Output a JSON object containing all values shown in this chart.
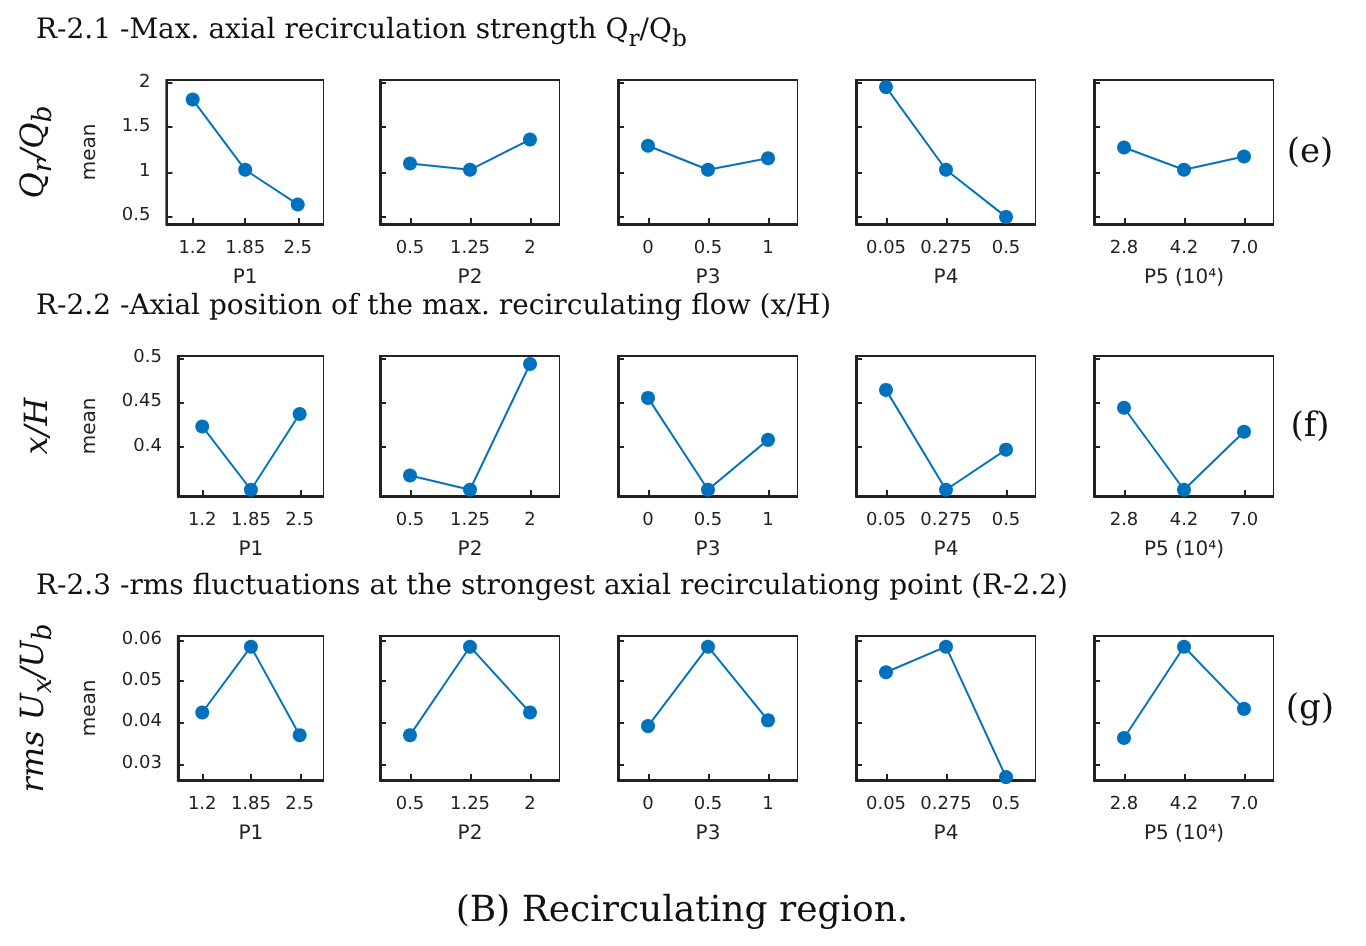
{
  "chart_data": [
    {
      "type": "line",
      "title": "R-2.1 -Max. axial recirculation strength    Q$_{r}$/Q$_{b}$",
      "ylabel": "mean",
      "annotations": [
        "Q$_{r}$/Q$_{b}$"
      ],
      "xlabel": "P1",
      "categories": [
        "1.2",
        "1.85",
        "2.5"
      ],
      "values": [
        1.81,
        1.02,
        0.63
      ],
      "color": "#0072bd",
      "marker": "circle",
      "ylim": [
        0.41,
        2.03
      ],
      "yticks": [
        0.5,
        1,
        1.5,
        2
      ]
    },
    {
      "type": "line",
      "xlabel": "P2",
      "categories": [
        "0.5",
        "1.25",
        "2"
      ],
      "values": [
        1.09,
        1.02,
        1.36
      ],
      "color": "#0072bd",
      "marker": "circle",
      "ylim": [
        0.41,
        2.03
      ],
      "yticks": [
        0.5,
        1,
        1.5,
        2
      ],
      "tick_labels": "x"
    },
    {
      "type": "line",
      "xlabel": "P3",
      "categories": [
        "0",
        "0.5",
        "1"
      ],
      "values": [
        1.29,
        1.02,
        1.15
      ],
      "color": "#0072bd",
      "marker": "circle",
      "ylim": [
        0.41,
        2.03
      ],
      "yticks": [
        0.5,
        1,
        1.5,
        2
      ],
      "tick_labels": "x"
    },
    {
      "type": "line",
      "xlabel": "P4",
      "categories": [
        "0.05",
        "0.275",
        "0.5"
      ],
      "values": [
        1.95,
        1.02,
        0.49
      ],
      "color": "#0072bd",
      "marker": "circle",
      "ylim": [
        0.41,
        2.03
      ],
      "yticks": [
        0.5,
        1,
        1.5,
        2
      ],
      "tick_labels": "x"
    },
    {
      "type": "line",
      "xlabel": "P5 (10⁴)",
      "annotations": [
        "(e)"
      ],
      "categories": [
        "2.8",
        "4.2",
        "7.0"
      ],
      "values": [
        1.27,
        1.02,
        1.17
      ],
      "color": "#0072bd",
      "marker": "circle",
      "ylim": [
        0.41,
        2.03
      ],
      "yticks": [
        0.5,
        1,
        1.5,
        2
      ],
      "tick_labels": "x"
    },
    {
      "type": "line",
      "title": "R-2.2 -Axial position of the max. recirculating flow (x/H)",
      "ylabel": "mean",
      "annotations": [
        "x/H"
      ],
      "xlabel": "P1",
      "categories": [
        "1.2",
        "1.85",
        "2.5"
      ],
      "values": [
        0.423,
        0.352,
        0.437
      ],
      "color": "#0072bd",
      "marker": "circle",
      "ylim": [
        0.345,
        0.502
      ],
      "yticks": [
        0.4,
        0.45,
        0.5
      ]
    },
    {
      "type": "line",
      "xlabel": "P2",
      "categories": [
        "0.5",
        "1.25",
        "2"
      ],
      "values": [
        0.368,
        0.352,
        0.493
      ],
      "color": "#0072bd",
      "marker": "circle",
      "ylim": [
        0.345,
        0.502
      ],
      "yticks": [
        0.4,
        0.45,
        0.5
      ],
      "tick_labels": "x"
    },
    {
      "type": "line",
      "xlabel": "P3",
      "categories": [
        "0",
        "0.5",
        "1"
      ],
      "values": [
        0.455,
        0.352,
        0.408
      ],
      "color": "#0072bd",
      "marker": "circle",
      "ylim": [
        0.345,
        0.502
      ],
      "yticks": [
        0.4,
        0.45,
        0.5
      ],
      "tick_labels": "x"
    },
    {
      "type": "line",
      "xlabel": "P4",
      "categories": [
        "0.05",
        "0.275",
        "0.5"
      ],
      "values": [
        0.464,
        0.352,
        0.397
      ],
      "color": "#0072bd",
      "marker": "circle",
      "ylim": [
        0.345,
        0.502
      ],
      "yticks": [
        0.4,
        0.45,
        0.5
      ],
      "tick_labels": "x"
    },
    {
      "type": "line",
      "xlabel": "P5 (10⁴)",
      "annotations": [
        "(f)"
      ],
      "categories": [
        "2.8",
        "4.2",
        "7.0"
      ],
      "values": [
        0.444,
        0.352,
        0.417
      ],
      "color": "#0072bd",
      "marker": "circle",
      "ylim": [
        0.345,
        0.502
      ],
      "yticks": [
        0.4,
        0.45,
        0.5
      ],
      "tick_labels": "x"
    },
    {
      "type": "line",
      "title": "R-2.3 -rms fluctuations at the strongest axial recirculationg point (R-2.2)",
      "ylabel": "mean",
      "annotations": [
        "rms U$_{x}$/U$_{b}$"
      ],
      "xlabel": "P1",
      "categories": [
        "1.2",
        "1.85",
        "2.5"
      ],
      "values": [
        0.0424,
        0.0584,
        0.0369
      ],
      "color": "#0072bd",
      "marker": "circle",
      "ylim": [
        0.026,
        0.061
      ],
      "yticks": [
        0.03,
        0.04,
        0.05,
        0.06
      ]
    },
    {
      "type": "line",
      "xlabel": "P2",
      "categories": [
        "0.5",
        "1.25",
        "2"
      ],
      "values": [
        0.0369,
        0.0584,
        0.0424
      ],
      "color": "#0072bd",
      "marker": "circle",
      "ylim": [
        0.026,
        0.061
      ],
      "yticks": [
        0.03,
        0.04,
        0.05,
        0.06
      ],
      "tick_labels": "x"
    },
    {
      "type": "line",
      "xlabel": "P3",
      "categories": [
        "0",
        "0.5",
        "1"
      ],
      "values": [
        0.0391,
        0.0584,
        0.0405
      ],
      "color": "#0072bd",
      "marker": "circle",
      "ylim": [
        0.026,
        0.061
      ],
      "yticks": [
        0.03,
        0.04,
        0.05,
        0.06
      ],
      "tick_labels": "x"
    },
    {
      "type": "line",
      "xlabel": "P4",
      "categories": [
        "0.05",
        "0.275",
        "0.5"
      ],
      "values": [
        0.0522,
        0.0584,
        0.0267
      ],
      "color": "#0072bd",
      "marker": "circle",
      "ylim": [
        0.026,
        0.061
      ],
      "yticks": [
        0.03,
        0.04,
        0.05,
        0.06
      ],
      "tick_labels": "x"
    },
    {
      "type": "line",
      "xlabel": "P5 (10⁴)",
      "annotations": [
        "(g)",
        "(B) Recirculating region."
      ],
      "categories": [
        "2.8",
        "4.2",
        "7.0"
      ],
      "values": [
        0.0362,
        0.0584,
        0.0433
      ],
      "color": "#0072bd",
      "marker": "circle",
      "ylim": [
        0.026,
        0.061
      ],
      "yticks": [
        0.03,
        0.04,
        0.05,
        0.06
      ],
      "tick_labels": "x"
    }
  ]
}
